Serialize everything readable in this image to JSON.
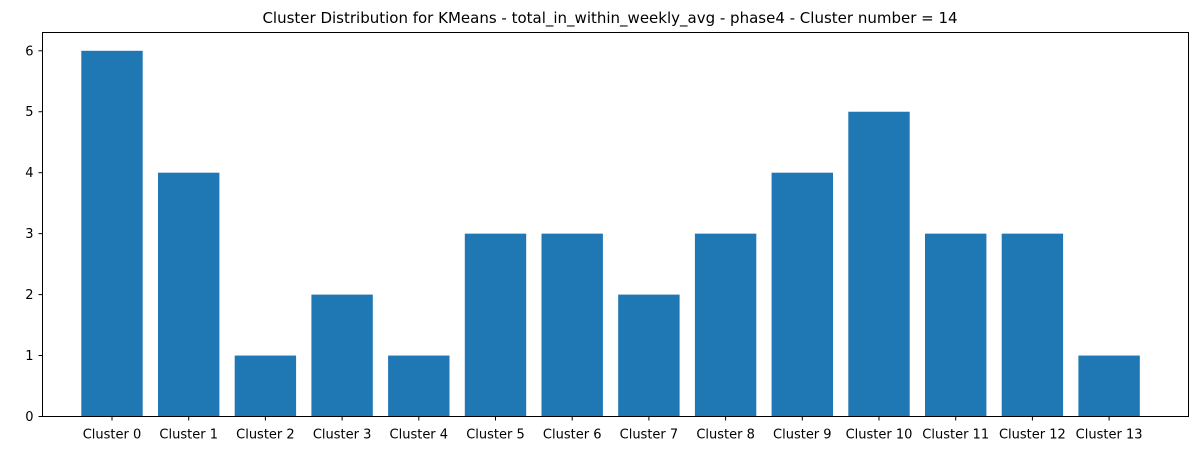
{
  "chart_data": {
    "type": "bar",
    "title": "Cluster Distribution for KMeans - total_in_within_weekly_avg - phase4 - Cluster number = 14",
    "xlabel": "",
    "ylabel": "",
    "categories": [
      "Cluster 0",
      "Cluster 1",
      "Cluster 2",
      "Cluster 3",
      "Cluster 4",
      "Cluster 5",
      "Cluster 6",
      "Cluster 7",
      "Cluster 8",
      "Cluster 9",
      "Cluster 10",
      "Cluster 11",
      "Cluster 12",
      "Cluster 13"
    ],
    "values": [
      6,
      4,
      1,
      2,
      1,
      3,
      3,
      2,
      3,
      4,
      5,
      3,
      3,
      1
    ],
    "ylim": [
      0,
      6.3
    ],
    "yticks": [
      0,
      1,
      2,
      3,
      4,
      5,
      6
    ],
    "grid": false,
    "legend": "none",
    "bar_color": "#1f77b4"
  }
}
